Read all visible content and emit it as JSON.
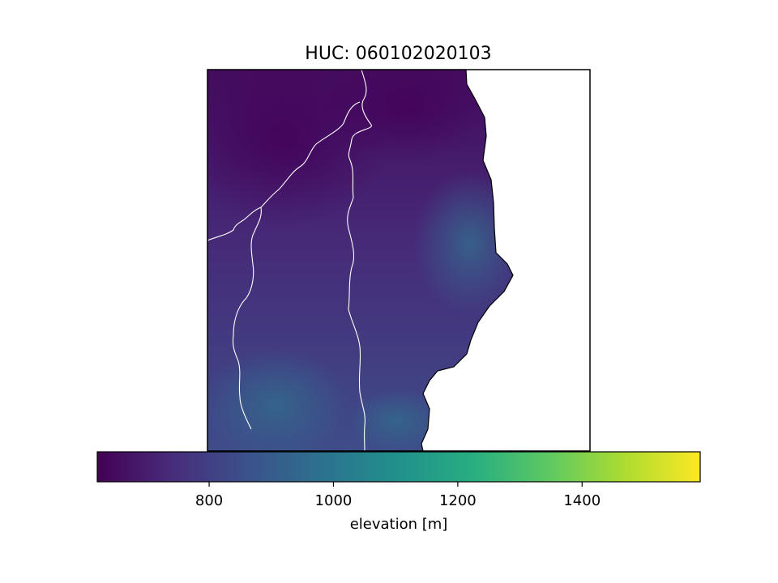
{
  "title": "HUC: 060102020103",
  "colorbar": {
    "label": "elevation [m]",
    "colormap": "viridis",
    "range": [
      620,
      1590
    ],
    "ticks": [
      {
        "value": 800,
        "label": "800"
      },
      {
        "value": 1000,
        "label": "1000"
      },
      {
        "value": 1200,
        "label": "1200"
      },
      {
        "value": 1400,
        "label": "1400"
      }
    ],
    "stops": [
      "#440154",
      "#472d7b",
      "#3b528b",
      "#2c728e",
      "#21918c",
      "#28ae80",
      "#5ec962",
      "#addc30",
      "#fde725"
    ]
  },
  "map": {
    "stream_color": "#ffffff",
    "boundary_color": "#000000"
  }
}
